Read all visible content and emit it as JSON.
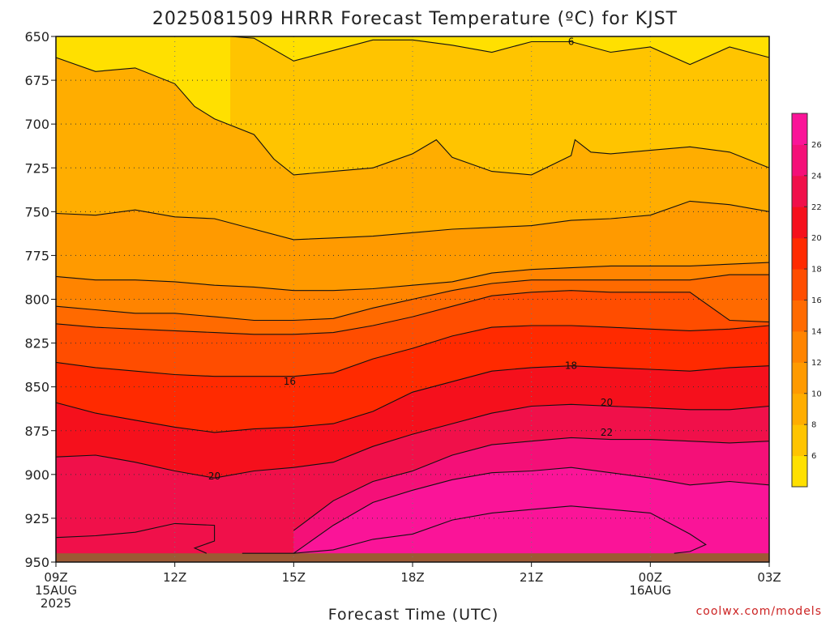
{
  "title": "2025081509 HRRR Forecast Temperature (ºC) for KJST",
  "credit": "coolwx.com/models",
  "colors": {
    "background": "#ffffff",
    "grid": "#333333",
    "contour_line": "#111111",
    "ground": "#9c5a34",
    "credit": "#cc2222"
  },
  "chart_data": {
    "type": "contour",
    "title": "2025081509 HRRR Forecast Temperature (ºC) for KJST",
    "xlabel": "Forecast Time (UTC)",
    "ylabel": "",
    "x_hours": [
      0,
      3,
      6,
      9,
      12,
      15,
      18
    ],
    "x_tick_labels": [
      [
        "09Z",
        "15AUG",
        "2025"
      ],
      [
        "12Z"
      ],
      [
        "15Z"
      ],
      [
        "18Z"
      ],
      [
        "21Z"
      ],
      [
        "00Z",
        "16AUG"
      ],
      [
        "03Z"
      ]
    ],
    "x_range_hours": [
      0,
      18
    ],
    "y_ticks": [
      650,
      675,
      700,
      725,
      750,
      775,
      800,
      825,
      850,
      875,
      900,
      925,
      950
    ],
    "ylim": [
      650,
      950
    ],
    "y_reversed": true,
    "grid": true,
    "colorbar": {
      "levels": [
        4,
        6,
        8,
        10,
        12,
        14,
        16,
        18,
        20,
        22,
        24,
        26,
        28
      ],
      "labels": [
        6,
        8,
        10,
        12,
        14,
        16,
        18,
        20,
        22,
        24,
        26
      ],
      "colors": [
        "#ffe000",
        "#ffc400",
        "#ffad00",
        "#ff9a00",
        "#ff8400",
        "#ff6a00",
        "#ff4d00",
        "#ff2a00",
        "#f5101c",
        "#f0104a",
        "#f41078",
        "#fa1498"
      ],
      "placement": "right"
    },
    "contour_labels": [
      {
        "value": "6",
        "hour": 13.0,
        "pressure": 653
      },
      {
        "value": "16",
        "hour": 5.9,
        "pressure": 847
      },
      {
        "value": "18",
        "hour": 13.0,
        "pressure": 838
      },
      {
        "value": "20",
        "hour": 4.0,
        "pressure": 901
      },
      {
        "value": "20",
        "hour": 13.9,
        "pressure": 859
      },
      {
        "value": "22",
        "hour": 13.9,
        "pressure": 876
      }
    ],
    "isotherms": [
      {
        "value": 6,
        "points": [
          [
            4.4,
            650
          ],
          [
            5.0,
            651
          ],
          [
            6.0,
            664
          ],
          [
            7.0,
            658
          ],
          [
            8.0,
            652
          ],
          [
            9.0,
            652
          ],
          [
            10.0,
            655
          ],
          [
            11.0,
            659
          ],
          [
            12.0,
            653
          ],
          [
            13.0,
            653
          ],
          [
            14.0,
            659
          ],
          [
            15.0,
            656
          ],
          [
            16.0,
            666
          ],
          [
            17.0,
            656
          ],
          [
            18.0,
            662
          ]
        ]
      },
      {
        "value": 8,
        "points": [
          [
            0,
            662
          ],
          [
            1.0,
            670
          ],
          [
            2.0,
            668
          ],
          [
            3.0,
            677
          ],
          [
            3.5,
            690
          ],
          [
            4.0,
            697
          ],
          [
            5.0,
            706
          ],
          [
            5.5,
            720
          ],
          [
            6.0,
            729
          ],
          [
            7.0,
            727
          ],
          [
            8.0,
            725
          ],
          [
            9.0,
            717
          ],
          [
            9.6,
            709
          ],
          [
            10.0,
            719
          ],
          [
            11.0,
            727
          ],
          [
            12.0,
            729
          ],
          [
            13.0,
            718
          ],
          [
            13.1,
            709
          ],
          [
            13.5,
            716
          ],
          [
            14.0,
            717
          ],
          [
            15.0,
            715
          ],
          [
            16.0,
            713
          ],
          [
            17.0,
            716
          ],
          [
            18.0,
            725
          ]
        ]
      },
      {
        "value": 10,
        "points": [
          [
            0,
            751
          ],
          [
            1.0,
            752
          ],
          [
            2.0,
            749
          ],
          [
            3.0,
            753
          ],
          [
            4.0,
            754
          ],
          [
            5.0,
            760
          ],
          [
            6.0,
            766
          ],
          [
            7.0,
            765
          ],
          [
            8.0,
            764
          ],
          [
            9.0,
            762
          ],
          [
            10.0,
            760
          ],
          [
            11.0,
            759
          ],
          [
            12.0,
            758
          ],
          [
            13.0,
            755
          ],
          [
            14.0,
            754
          ],
          [
            15.0,
            752
          ],
          [
            16.0,
            744
          ],
          [
            17.0,
            746
          ],
          [
            18.0,
            750
          ]
        ]
      },
      {
        "value": 12,
        "points": [
          [
            0,
            787
          ],
          [
            1.0,
            789
          ],
          [
            2.0,
            789
          ],
          [
            3.0,
            790
          ],
          [
            4.0,
            792
          ],
          [
            5.0,
            793
          ],
          [
            6.0,
            795
          ],
          [
            7.0,
            795
          ],
          [
            8.0,
            794
          ],
          [
            9.0,
            792
          ],
          [
            10.0,
            790
          ],
          [
            11.0,
            785
          ],
          [
            12.0,
            783
          ],
          [
            13.0,
            782
          ],
          [
            14.0,
            781
          ],
          [
            15.0,
            781
          ],
          [
            16.0,
            781
          ],
          [
            17.0,
            780
          ],
          [
            18.0,
            779
          ]
        ]
      },
      {
        "value": 14,
        "points": [
          [
            0,
            804
          ],
          [
            1.0,
            806
          ],
          [
            2.0,
            808
          ],
          [
            3.0,
            808
          ],
          [
            4.0,
            810
          ],
          [
            5.0,
            812
          ],
          [
            6.0,
            812
          ],
          [
            7.0,
            811
          ],
          [
            8.0,
            805
          ],
          [
            9.0,
            800
          ],
          [
            10.0,
            795
          ],
          [
            11.0,
            791
          ],
          [
            12.0,
            789
          ],
          [
            13.0,
            789
          ],
          [
            14.0,
            789
          ],
          [
            15.0,
            789
          ],
          [
            16.0,
            789
          ],
          [
            17.0,
            786
          ],
          [
            18.0,
            786
          ]
        ]
      },
      {
        "value": 16,
        "points": [
          [
            0,
            814
          ],
          [
            1.0,
            816
          ],
          [
            2.0,
            817
          ],
          [
            3.0,
            818
          ],
          [
            4.0,
            819
          ],
          [
            5.0,
            820
          ],
          [
            6.0,
            820
          ],
          [
            7.0,
            819
          ],
          [
            8.0,
            815
          ],
          [
            9.0,
            810
          ],
          [
            10.0,
            804
          ],
          [
            11.0,
            798
          ],
          [
            12.0,
            796
          ],
          [
            13.0,
            795
          ],
          [
            14.0,
            796
          ],
          [
            15.0,
            796
          ],
          [
            16.0,
            796
          ],
          [
            17.0,
            812
          ],
          [
            18.0,
            813
          ]
        ]
      },
      {
        "value": 18,
        "points": [
          [
            0,
            836
          ],
          [
            1.0,
            839
          ],
          [
            2.0,
            841
          ],
          [
            3.0,
            843
          ],
          [
            4.0,
            844
          ],
          [
            5.0,
            844
          ],
          [
            6.0,
            844
          ],
          [
            7.0,
            842
          ],
          [
            8.0,
            834
          ],
          [
            9.0,
            828
          ],
          [
            10.0,
            821
          ],
          [
            11.0,
            816
          ],
          [
            12.0,
            815
          ],
          [
            13.0,
            815
          ],
          [
            14.0,
            816
          ],
          [
            15.0,
            817
          ],
          [
            16.0,
            818
          ],
          [
            17.0,
            817
          ],
          [
            18.0,
            815
          ]
        ]
      },
      {
        "value": 20,
        "points": [
          [
            0,
            859
          ],
          [
            1.0,
            865
          ],
          [
            2.0,
            869
          ],
          [
            3.0,
            873
          ],
          [
            4.0,
            876
          ],
          [
            5.0,
            874
          ],
          [
            6.0,
            873
          ],
          [
            7.0,
            871
          ],
          [
            8.0,
            864
          ],
          [
            9.0,
            853
          ],
          [
            10.0,
            847
          ],
          [
            11.0,
            841
          ],
          [
            12.0,
            839
          ],
          [
            13.0,
            838
          ],
          [
            14.0,
            839
          ],
          [
            15.0,
            840
          ],
          [
            16.0,
            841
          ],
          [
            17.0,
            839
          ],
          [
            18.0,
            838
          ]
        ]
      },
      {
        "value": 22,
        "points": [
          [
            0,
            890
          ],
          [
            1.0,
            889
          ],
          [
            2.0,
            893
          ],
          [
            3.0,
            898
          ],
          [
            4.0,
            902
          ],
          [
            5.0,
            898
          ],
          [
            6.0,
            896
          ],
          [
            7.0,
            893
          ],
          [
            8.0,
            884
          ],
          [
            9.0,
            877
          ],
          [
            10.0,
            871
          ],
          [
            11.0,
            865
          ],
          [
            12.0,
            861
          ],
          [
            13.0,
            860
          ],
          [
            14.0,
            861
          ],
          [
            15.0,
            862
          ],
          [
            16.0,
            863
          ],
          [
            17.0,
            863
          ],
          [
            18.0,
            861
          ]
        ]
      },
      {
        "value": 24,
        "points": [
          [
            6.0,
            932
          ],
          [
            7.0,
            915
          ],
          [
            8.0,
            904
          ],
          [
            9.0,
            898
          ],
          [
            10.0,
            889
          ],
          [
            11.0,
            883
          ],
          [
            12.0,
            881
          ],
          [
            13.0,
            879
          ],
          [
            14.0,
            880
          ],
          [
            15.0,
            880
          ],
          [
            16.0,
            881
          ],
          [
            17.0,
            882
          ],
          [
            18.0,
            881
          ]
        ]
      },
      {
        "value": 26,
        "points": [
          [
            4.7,
            945
          ],
          [
            6.0,
            945
          ],
          [
            7.0,
            929
          ],
          [
            8.0,
            916
          ],
          [
            9.0,
            909
          ],
          [
            10.0,
            903
          ],
          [
            11.0,
            899
          ],
          [
            12.0,
            898
          ],
          [
            13.0,
            896
          ],
          [
            14.0,
            899
          ],
          [
            15.0,
            902
          ],
          [
            16.0,
            906
          ],
          [
            17.0,
            904
          ],
          [
            18.0,
            906
          ]
        ]
      },
      {
        "value": 28,
        "points": [
          [
            6.0,
            945
          ],
          [
            7.0,
            943
          ],
          [
            8.0,
            937
          ],
          [
            9.0,
            934
          ],
          [
            10.0,
            926
          ],
          [
            11.0,
            922
          ],
          [
            12.0,
            920
          ],
          [
            13.0,
            918
          ],
          [
            14.0,
            920
          ],
          [
            15.0,
            922
          ],
          [
            16.0,
            934
          ],
          [
            16.4,
            940
          ],
          [
            16.0,
            944
          ],
          [
            15.6,
            945
          ]
        ]
      },
      {
        "value": 22,
        "points": [
          [
            0,
            936
          ],
          [
            1.0,
            935
          ],
          [
            2.0,
            933
          ],
          [
            3.0,
            928
          ],
          [
            4.0,
            929
          ],
          [
            4.0,
            938
          ],
          [
            3.5,
            942
          ],
          [
            3.8,
            945
          ]
        ]
      }
    ],
    "ground_pressure": 945
  }
}
